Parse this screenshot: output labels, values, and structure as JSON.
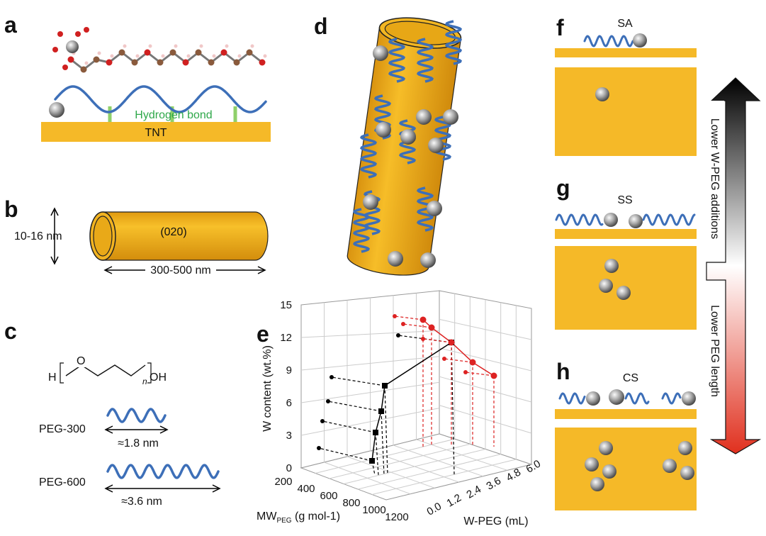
{
  "panels": {
    "a": {
      "label": "a",
      "bond": "Hydrogen bond",
      "substrate": "TNT"
    },
    "b": {
      "label": "b",
      "diameter": "10-16 nm",
      "facet": "(020)",
      "length": "300-500 nm"
    },
    "c": {
      "label": "c",
      "formula": {
        "h": "H",
        "o": "O",
        "n": "n",
        "oh": "OH"
      },
      "peg300": "PEG-300",
      "peg300_len": "≈1.8 nm",
      "peg600": "PEG-600",
      "peg600_len": "≈3.6 nm"
    },
    "d": {
      "label": "d"
    },
    "e": {
      "label": "e",
      "y_title": "W content (wt.%)",
      "x_title": "MW",
      "x_title_sub": "PEG",
      "x_title_unit": " (g mol-1)",
      "z_title": "W-PEG (mL)",
      "yticks": [
        "0",
        "3",
        "6",
        "9",
        "12",
        "15"
      ],
      "xticks": [
        "200",
        "400",
        "600",
        "800",
        "1000",
        "1200"
      ],
      "zticks": [
        "0.0",
        "1.2",
        "2.4",
        "3.6",
        "4.8",
        "6.0"
      ]
    },
    "f": {
      "label": "f",
      "name": "SA"
    },
    "g": {
      "label": "g",
      "name": "SS"
    },
    "h": {
      "label": "h",
      "name": "CS"
    },
    "arrow": {
      "top": "Lower W-PEG additions",
      "bottom": "Lower PEG length"
    }
  }
}
